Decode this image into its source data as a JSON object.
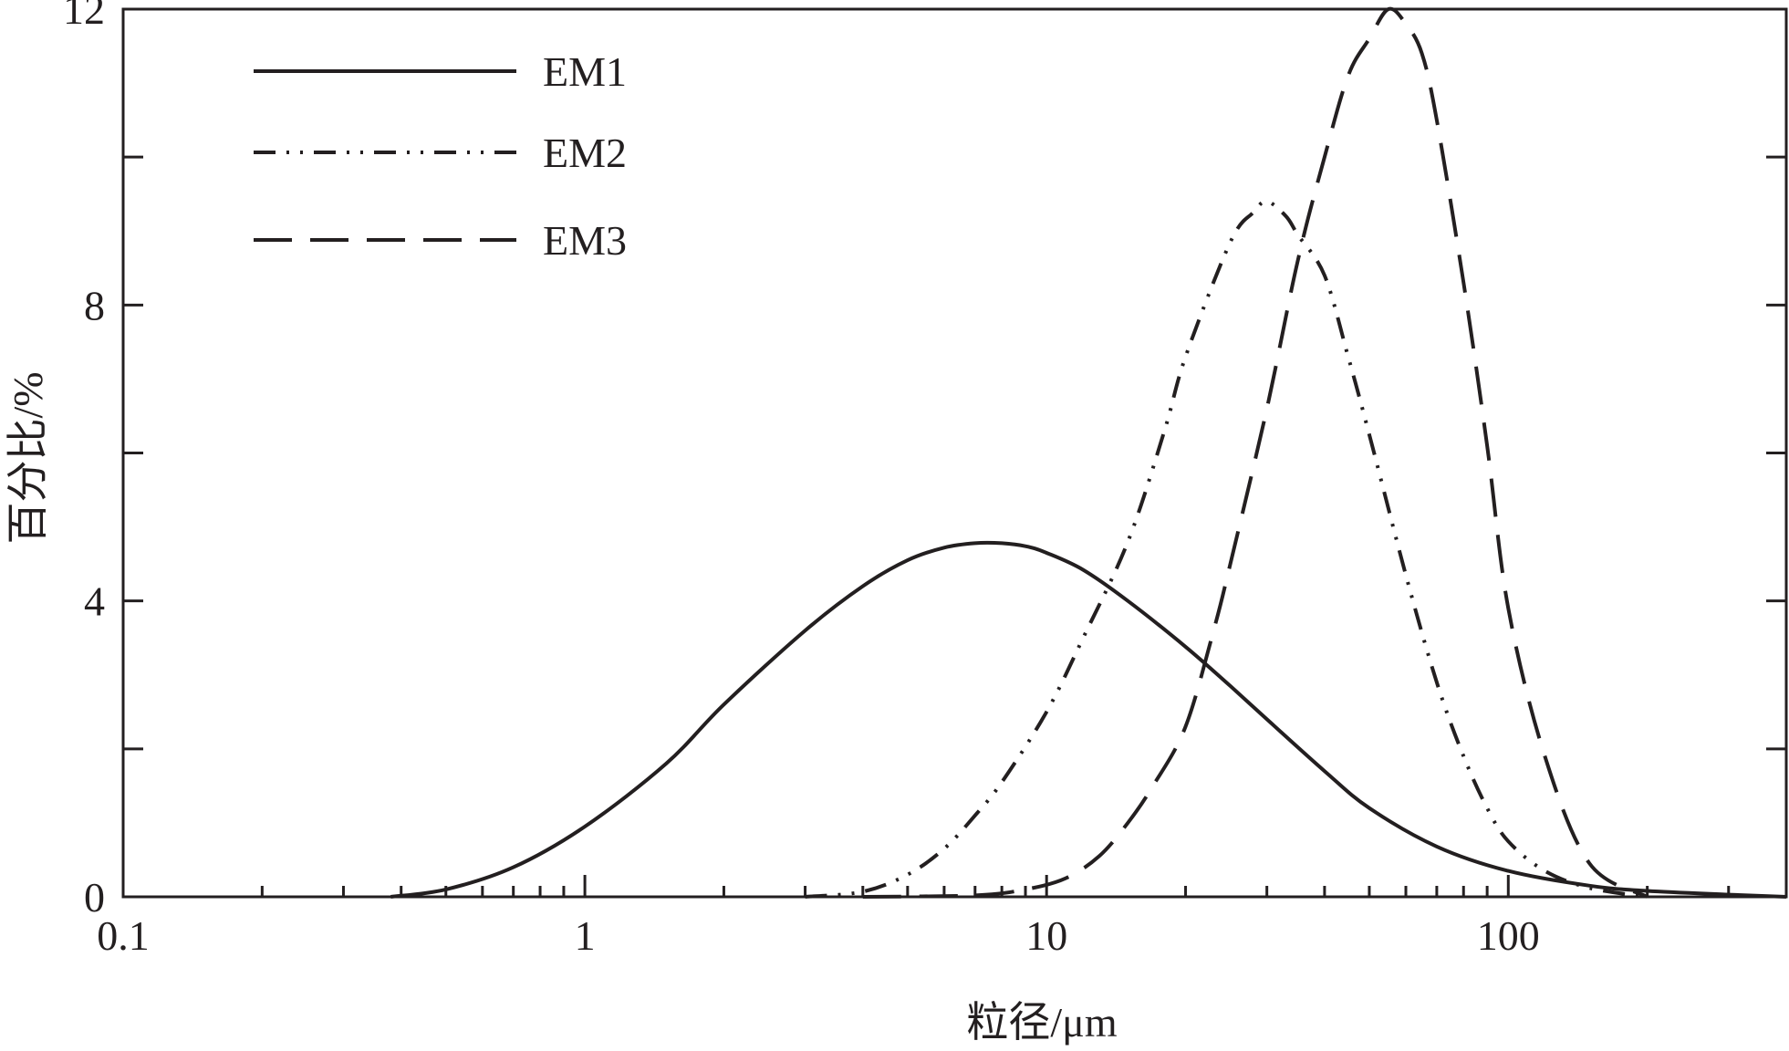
{
  "chart_data": {
    "type": "line",
    "xlabel": "粒径/μm",
    "ylabel": "百分比/%",
    "xscale": "log",
    "xlim": [
      0.1,
      400
    ],
    "ylim": [
      0,
      12
    ],
    "xticks": [
      0.1,
      1,
      10,
      100
    ],
    "xtick_labels": [
      "0.1",
      "1",
      "10",
      "100"
    ],
    "yticks": [
      0,
      4,
      8,
      12
    ],
    "ytick_labels": [
      "0",
      "4",
      "8",
      "12"
    ],
    "grid": false,
    "legend_position": "top-left",
    "line_color": "#231f20",
    "series": [
      {
        "name": "EM1",
        "style": "solid",
        "x": [
          0.38,
          0.5,
          0.7,
          1.0,
          1.5,
          2.0,
          3.0,
          4.0,
          5.0,
          6.0,
          7.0,
          8.0,
          9.0,
          10,
          12,
          15,
          20,
          25,
          30,
          40,
          50,
          70,
          100,
          150,
          200,
          300,
          400
        ],
        "y": [
          0.0,
          0.1,
          0.4,
          0.95,
          1.8,
          2.6,
          3.6,
          4.2,
          4.55,
          4.72,
          4.78,
          4.78,
          4.74,
          4.65,
          4.42,
          4.0,
          3.38,
          2.85,
          2.4,
          1.7,
          1.2,
          0.68,
          0.35,
          0.15,
          0.08,
          0.03,
          0.0
        ]
      },
      {
        "name": "EM2",
        "style": "dash-dot-dot",
        "x": [
          3.0,
          4.0,
          5.0,
          6.0,
          7.0,
          8.0,
          10,
          12,
          15,
          18,
          20,
          25,
          28,
          30,
          33,
          35,
          40,
          45,
          50,
          60,
          70,
          80,
          90,
          100,
          120,
          150,
          200
        ],
        "y": [
          0.0,
          0.07,
          0.3,
          0.65,
          1.1,
          1.55,
          2.5,
          3.5,
          4.8,
          6.3,
          7.3,
          8.85,
          9.25,
          9.4,
          9.2,
          8.95,
          8.4,
          7.3,
          6.25,
          4.35,
          2.9,
          1.9,
          1.2,
          0.75,
          0.35,
          0.12,
          0.0
        ]
      },
      {
        "name": "EM3",
        "style": "dashed",
        "x": [
          4.0,
          7.0,
          9.0,
          11,
          13,
          15,
          17,
          20,
          23,
          25,
          30,
          35,
          40,
          45,
          50,
          55,
          60,
          65,
          70,
          80,
          90,
          100,
          120,
          150,
          200
        ],
        "y": [
          0.0,
          0.02,
          0.1,
          0.25,
          0.55,
          1.0,
          1.5,
          2.3,
          3.6,
          4.5,
          6.6,
          8.6,
          10.0,
          11.1,
          11.6,
          12.0,
          11.8,
          11.4,
          10.5,
          8.3,
          6.1,
          3.9,
          1.9,
          0.45,
          0.0
        ]
      }
    ]
  }
}
